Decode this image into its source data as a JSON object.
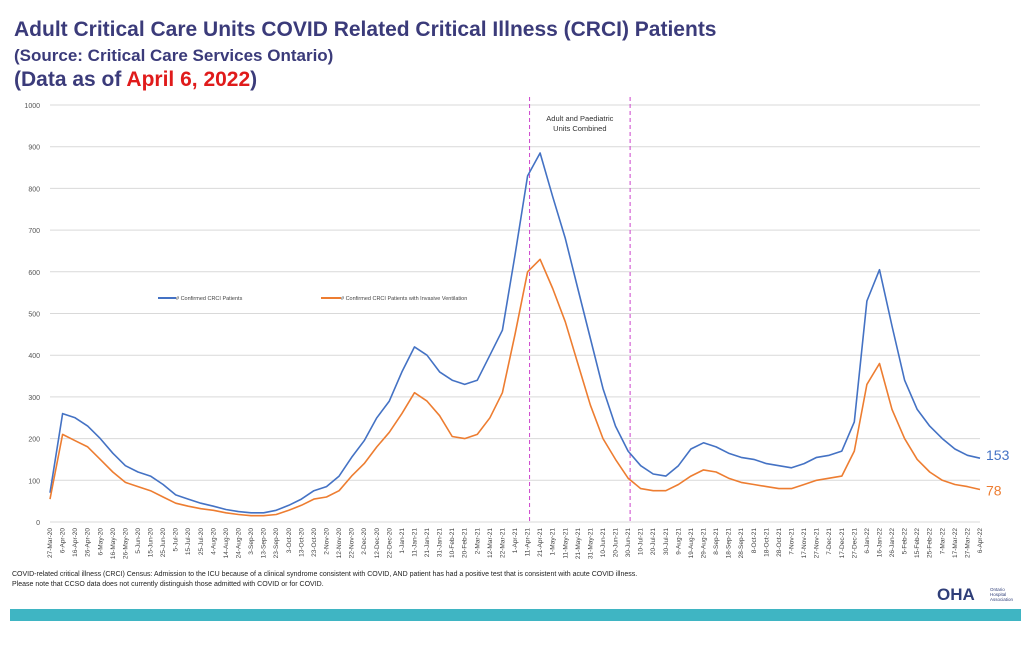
{
  "header": {
    "title": "Adult Critical Care Units COVID Related Critical Illness (CRCI) Patients",
    "source": "(Source: Critical Care Services Ontario)",
    "asof_prefix": "(Data as of ",
    "asof_date": "April 6, 2022",
    "asof_suffix": ")"
  },
  "chart_data": {
    "type": "line",
    "title": "Adult Critical Care Units COVID Related Critical Illness (CRCI) Patients",
    "xlabel": "",
    "ylabel": "",
    "ylim": [
      0,
      1000
    ],
    "yticks": [
      0,
      100,
      200,
      300,
      400,
      500,
      600,
      700,
      800,
      900,
      1000
    ],
    "grid": true,
    "legend_position": "middle-left",
    "x_tick_labels": [
      "27-Mar-20",
      "6-Apr-20",
      "16-Apr-20",
      "26-Apr-20",
      "6-May-20",
      "16-May-20",
      "26-May-20",
      "5-Jun-20",
      "15-Jun-20",
      "25-Jun-20",
      "5-Jul-20",
      "15-Jul-20",
      "25-Jul-20",
      "4-Aug-20",
      "14-Aug-20",
      "24-Aug-20",
      "3-Sep-20",
      "13-Sep-20",
      "23-Sep-20",
      "3-Oct-20",
      "13-Oct-20",
      "23-Oct-20",
      "2-Nov-20",
      "12-Nov-20",
      "22-Nov-20",
      "2-Dec-20",
      "12-Dec-20",
      "22-Dec-20",
      "1-Jan-21",
      "11-Jan-21",
      "21-Jan-21",
      "31-Jan-21",
      "10-Feb-21",
      "20-Feb-21",
      "2-Mar-21",
      "12-Mar-21",
      "22-Mar-21",
      "1-Apr-21",
      "11-Apr-21",
      "21-Apr-21",
      "1-May-21",
      "11-May-21",
      "21-May-21",
      "31-May-21",
      "10-Jun-21",
      "20-Jun-21",
      "30-Jun-21",
      "10-Jul-21",
      "20-Jul-21",
      "30-Jul-21",
      "9-Aug-21",
      "19-Aug-21",
      "29-Aug-21",
      "8-Sep-21",
      "18-Sep-21",
      "28-Sep-21",
      "8-Oct-21",
      "18-Oct-21",
      "28-Oct-21",
      "7-Nov-21",
      "17-Nov-21",
      "27-Nov-21",
      "7-Dec-21",
      "17-Dec-21",
      "27-Dec-21",
      "6-Jan-22",
      "16-Jan-22",
      "26-Jan-22",
      "5-Feb-22",
      "15-Feb-22",
      "25-Feb-22",
      "7-Mar-22",
      "17-Mar-22",
      "27-Mar-22",
      "6-Apr-22"
    ],
    "series": [
      {
        "name": "# Confirmed CRCI Patients",
        "color": "#4472c4",
        "end_label": "153",
        "values": [
          70,
          260,
          250,
          230,
          200,
          165,
          135,
          120,
          110,
          90,
          65,
          55,
          45,
          38,
          30,
          25,
          22,
          22,
          28,
          40,
          55,
          75,
          85,
          110,
          155,
          195,
          250,
          290,
          360,
          420,
          400,
          360,
          340,
          330,
          340,
          400,
          460,
          640,
          830,
          885,
          780,
          680,
          560,
          440,
          320,
          230,
          170,
          135,
          115,
          110,
          135,
          175,
          190,
          180,
          165,
          155,
          150,
          140,
          135,
          130,
          140,
          155,
          160,
          170,
          240,
          530,
          605,
          470,
          340,
          270,
          230,
          200,
          175,
          160,
          153
        ]
      },
      {
        "name": "# Confirmed CRCI Patients with Invasive Ventilation",
        "color": "#ed7d31",
        "end_label": "78",
        "values": [
          55,
          210,
          195,
          180,
          150,
          120,
          95,
          85,
          75,
          60,
          45,
          38,
          32,
          28,
          22,
          18,
          15,
          15,
          18,
          28,
          40,
          55,
          60,
          75,
          110,
          140,
          180,
          215,
          260,
          310,
          290,
          255,
          205,
          200,
          210,
          250,
          310,
          450,
          600,
          630,
          560,
          480,
          380,
          280,
          200,
          150,
          105,
          80,
          75,
          75,
          90,
          110,
          125,
          120,
          105,
          95,
          90,
          85,
          80,
          80,
          90,
          100,
          105,
          110,
          170,
          330,
          380,
          270,
          200,
          150,
          120,
          100,
          90,
          85,
          78
        ]
      }
    ],
    "annotation": {
      "text_line1": "Adult and Paediatric",
      "text_line2": "Units Combined",
      "start": "11-Apr-21",
      "end": "30-Jun-21"
    }
  },
  "footnotes": {
    "line1": "COVID-related critical illness (CRCI) Census: Admission to the ICU because of a clinical syndrome consistent with COVID, AND patient has had a positive test that is consistent with acute COVID illness.",
    "line2": "Please note that CCSO data does not currently distinguish those admitted with COVID or for COVID."
  },
  "logo": {
    "text": "OHA",
    "line1": "Ontario",
    "line2": "Hospital",
    "line3": "Association"
  }
}
